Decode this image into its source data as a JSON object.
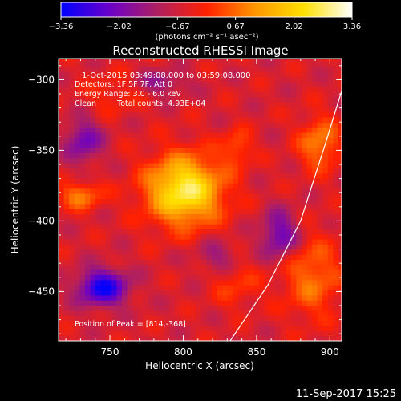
{
  "chart_data": {
    "type": "heatmap",
    "title": "Reconstructed RHESSI Image",
    "xlabel": "Heliocentric X (arcsec)",
    "ylabel": "Heliocentric Y (arcsec)",
    "xlim": [
      715,
      908
    ],
    "ylim": [
      -485,
      -285
    ],
    "x_ticks": [
      {
        "value": 750,
        "label": "750"
      },
      {
        "value": 800,
        "label": "800"
      },
      {
        "value": 850,
        "label": "850"
      },
      {
        "value": 900,
        "label": "900"
      }
    ],
    "y_ticks": [
      {
        "value": -300,
        "label": "−300"
      },
      {
        "value": -350,
        "label": "−350"
      },
      {
        "value": -400,
        "label": "−400"
      },
      {
        "value": -450,
        "label": "−450"
      }
    ],
    "colorbar": {
      "range": [
        -3.36,
        3.36
      ],
      "ticks": [
        {
          "value": -3.36,
          "label": "−3.36"
        },
        {
          "value": -2.02,
          "label": "−2.02"
        },
        {
          "value": -0.67,
          "label": "−0.67"
        },
        {
          "value": 0.67,
          "label": "0.67"
        },
        {
          "value": 2.02,
          "label": "2.02"
        },
        {
          "value": 3.36,
          "label": "3.36"
        }
      ],
      "unit_label": "(photons cm⁻² s⁻¹ asec⁻²)",
      "colors": [
        "#0000ff",
        "#6a00c8",
        "#b02060",
        "#ff2000",
        "#ff9600",
        "#ffe000",
        "#ffffff"
      ]
    },
    "annotations": {
      "time_range": "1-Oct-2015 03:49:08.000 to 03:59:08.000",
      "detectors": "Detectors: 1F 5F 7F, Att 0",
      "energy": "Energy Range: 3.0 - 6.0 keV",
      "clean": "Clean",
      "counts": "Total counts: 4.93E+04",
      "peak": "Position of Peak = [814,-368]"
    },
    "peak": {
      "x": 814,
      "y": -368
    },
    "grid": false,
    "limb_curve": [
      [
        832,
        -485
      ],
      [
        858,
        -445
      ],
      [
        880,
        -400
      ],
      [
        897,
        -345
      ],
      [
        908,
        -308
      ]
    ],
    "sources": [
      {
        "x": 801,
        "y": -378,
        "sx": 18,
        "sy": 17,
        "amp": 3.2
      },
      {
        "x": 730,
        "y": -382,
        "sx": 10,
        "sy": 7,
        "amp": 1.4
      },
      {
        "x": 837,
        "y": -348,
        "sx": 7,
        "sy": 9,
        "amp": 1.0
      },
      {
        "x": 893,
        "y": -345,
        "sx": 10,
        "sy": 13,
        "amp": 1.5
      },
      {
        "x": 888,
        "y": -440,
        "sx": 14,
        "sy": 20,
        "amp": 1.3
      },
      {
        "x": 836,
        "y": -445,
        "sx": 12,
        "sy": 12,
        "amp": 0.7
      },
      {
        "x": 752,
        "y": -310,
        "sx": 14,
        "sy": 10,
        "amp": 0.6
      },
      {
        "x": 745,
        "y": -447,
        "sx": 12,
        "sy": 9,
        "amp": -2.6
      },
      {
        "x": 732,
        "y": -343,
        "sx": 9,
        "sy": 11,
        "amp": -1.5
      },
      {
        "x": 866,
        "y": -410,
        "sx": 9,
        "sy": 12,
        "amp": -1.7
      },
      {
        "x": 785,
        "y": -302,
        "sx": 12,
        "sy": 6,
        "amp": -1.0
      },
      {
        "x": 823,
        "y": -425,
        "sx": 10,
        "sy": 8,
        "amp": -0.9
      }
    ]
  },
  "footer": {
    "timestamp": "11-Sep-2017 15:25"
  }
}
